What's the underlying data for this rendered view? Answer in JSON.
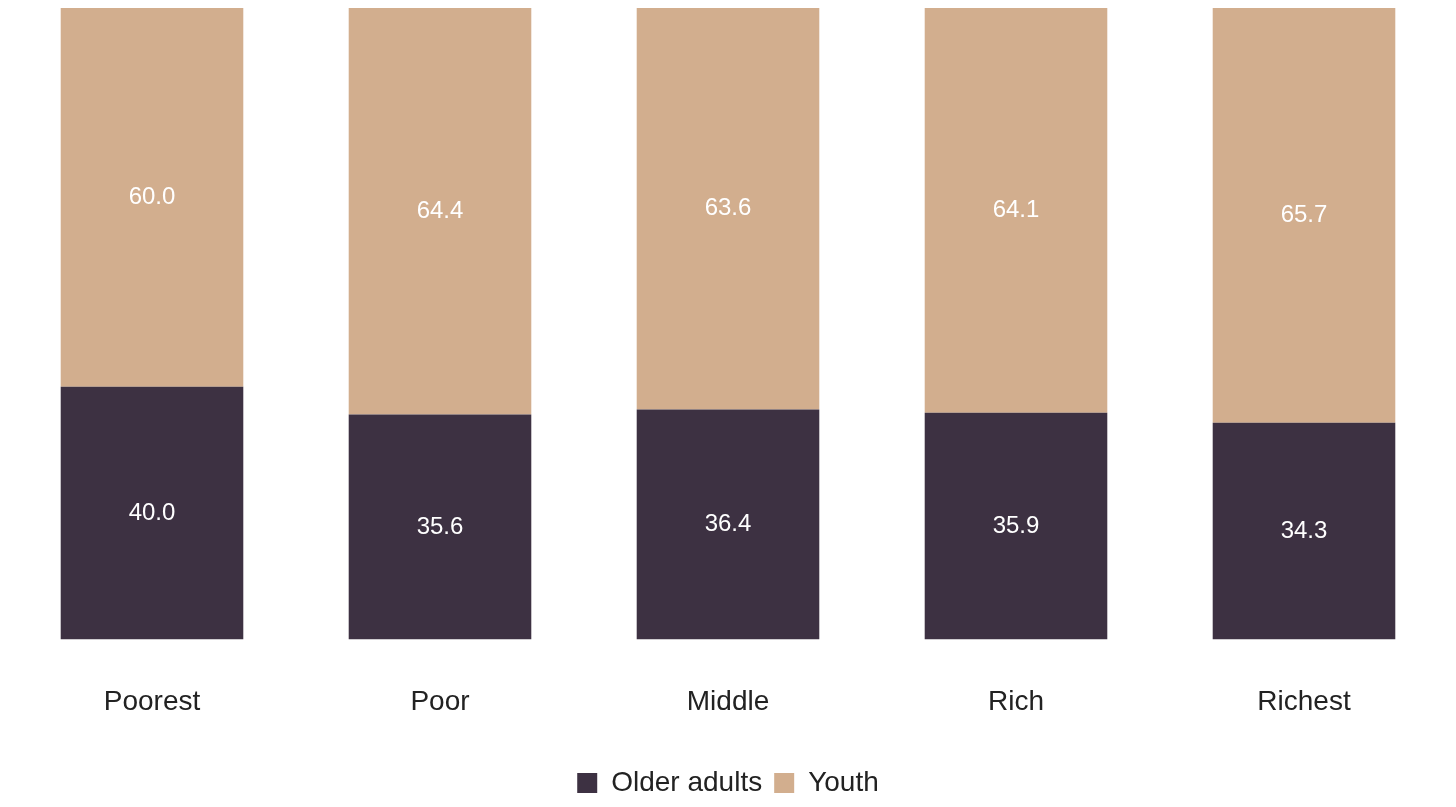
{
  "chart_data": {
    "type": "bar",
    "stacked": true,
    "categories": [
      "Poorest",
      "Poor",
      "Middle",
      "Rich",
      "Richest"
    ],
    "series": [
      {
        "name": "Older adults",
        "color": "#3d3142",
        "values": [
          40.0,
          35.6,
          36.4,
          35.9,
          34.3
        ],
        "value_labels": [
          "40.0",
          "35.6",
          "36.4",
          "35.9",
          "34.3"
        ]
      },
      {
        "name": "Youth",
        "color": "#d2ae8e",
        "values": [
          60.0,
          64.4,
          63.6,
          64.1,
          65.7
        ],
        "value_labels": [
          "60.0",
          "64.4",
          "63.6",
          "64.1",
          "65.7"
        ]
      }
    ],
    "ylim": [
      0,
      100
    ],
    "grid": false,
    "legend": "bottom",
    "tick_labels": "x"
  }
}
